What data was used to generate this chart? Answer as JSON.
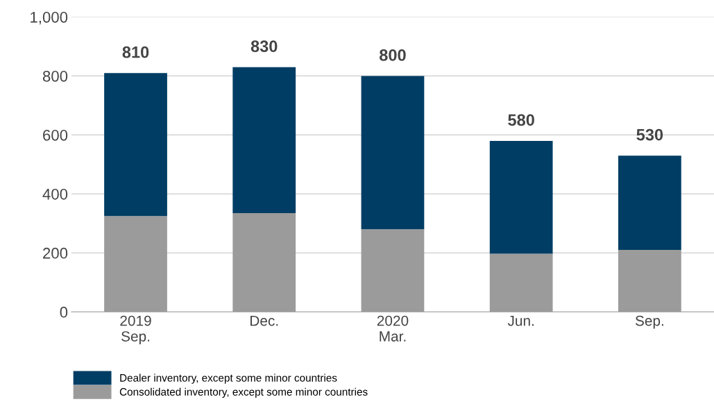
{
  "chart_data": {
    "type": "bar",
    "stacked": true,
    "categories": [
      "2019\nSep.",
      "Dec.",
      "2020\nMar.",
      "Jun.",
      "Sep."
    ],
    "series": [
      {
        "name": "Consolidated inventory, except some minor countries",
        "color": "#9b9b9b",
        "values": [
          325,
          335,
          280,
          197,
          210
        ]
      },
      {
        "name": "Dealer inventory, except some minor countries",
        "color": "#003d64",
        "values": [
          485,
          495,
          520,
          383,
          320
        ]
      }
    ],
    "totals": [
      "810",
      "830",
      "800",
      "580",
      "530"
    ],
    "ylim": [
      0,
      1000
    ],
    "yticks": [
      0,
      200,
      400,
      600,
      800,
      {
        "value": 1000,
        "label": "1,000"
      }
    ],
    "grid": "y",
    "legend": "bottom"
  }
}
